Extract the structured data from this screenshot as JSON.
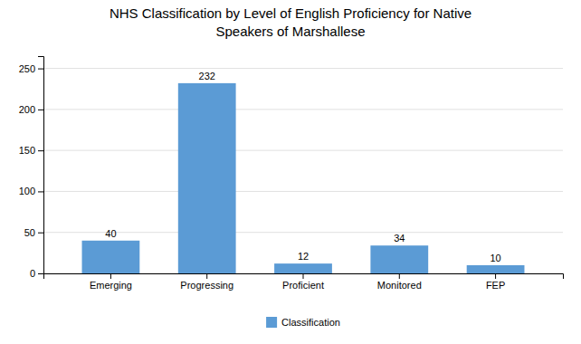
{
  "chart_data": {
    "type": "bar",
    "title": "NHS Classification by Level of English Proficiency for Native\nSpeakers of Marshallese",
    "categories": [
      "Emerging",
      "Progressing",
      "Proficient",
      "Monitored",
      "FEP"
    ],
    "series": [
      {
        "name": "Classification",
        "color": "#5B9BD5",
        "values": [
          40,
          232,
          12,
          34,
          10
        ]
      }
    ],
    "ylim": [
      0,
      265
    ],
    "yticks": [
      0,
      50,
      100,
      150,
      200,
      250
    ],
    "grid": true,
    "legend": "bottom",
    "data_labels": true
  }
}
